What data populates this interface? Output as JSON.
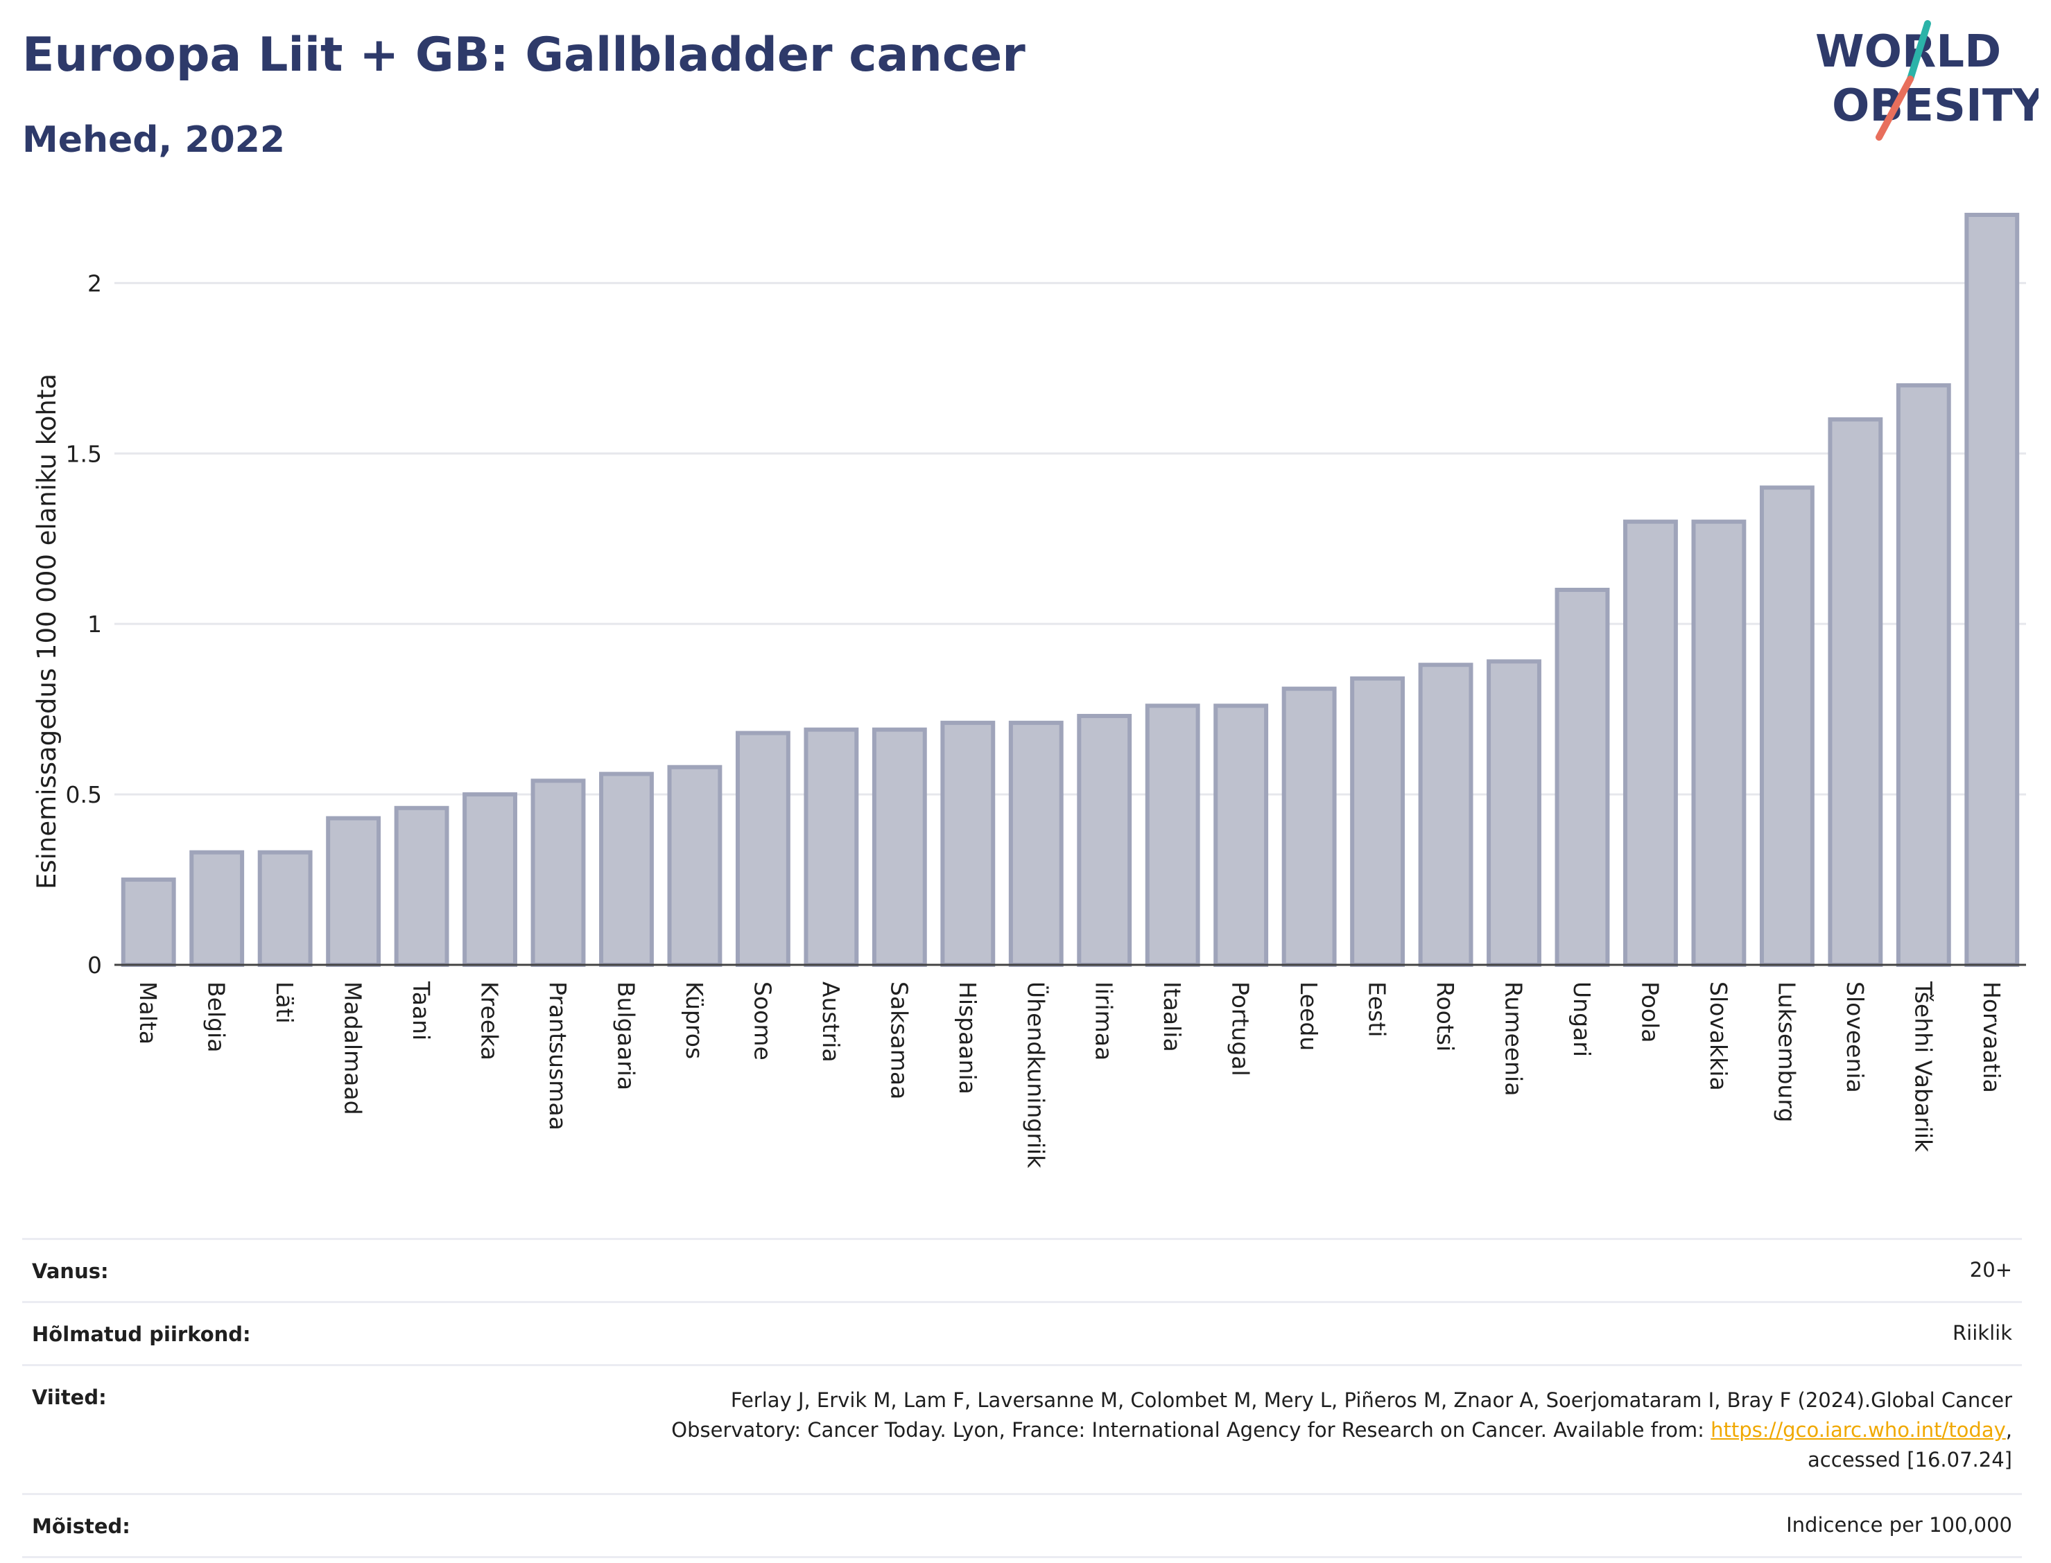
{
  "header": {
    "title": "Euroopa Liit + GB: Gallbladder cancer",
    "subtitle": "Mehed, 2022"
  },
  "logo": {
    "line1": "WORLD",
    "line2": "OBESITY",
    "accent_colors": [
      "#2bb3a8",
      "#e86f5c"
    ],
    "text_color": "#2e3a6a"
  },
  "chart_data": {
    "type": "bar",
    "ylabel": "Esinemissagedus 100 000 elaniku kohta",
    "ylim": [
      0,
      2.2
    ],
    "yticks": [
      0,
      0.5,
      1,
      1.5,
      2
    ],
    "ytick_labels": [
      "0",
      "0.5",
      "1",
      "1.5",
      "2"
    ],
    "grid": true,
    "bar_color": "#bec1ce",
    "bar_edge_color": "#9fa4ba",
    "categories": [
      "Malta",
      "Belgia",
      "Läti",
      "Madalmaad",
      "Taani",
      "Kreeka",
      "Prantsusmaa",
      "Bulgaaria",
      "Küpros",
      "Soome",
      "Austria",
      "Saksamaa",
      "Hispaania",
      "Ühendkuningriik",
      "Iirimaa",
      "Itaalia",
      "Portugal",
      "Leedu",
      "Eesti",
      "Rootsi",
      "Rumeenia",
      "Ungari",
      "Poola",
      "Slovakkia",
      "Luksemburg",
      "Sloveenia",
      "Tšehhi Vabariik",
      "Horvaatia"
    ],
    "values": [
      0.25,
      0.33,
      0.33,
      0.43,
      0.46,
      0.5,
      0.54,
      0.56,
      0.58,
      0.68,
      0.69,
      0.69,
      0.71,
      0.71,
      0.73,
      0.76,
      0.76,
      0.81,
      0.84,
      0.88,
      0.89,
      1.1,
      1.3,
      1.3,
      1.4,
      1.6,
      1.7,
      2.2
    ]
  },
  "info": {
    "rows": [
      {
        "label": "Vanus:",
        "value": "20+"
      },
      {
        "label": "Hõlmatud piirkond:",
        "value": "Riiklik"
      },
      {
        "label": "Viited:",
        "value_lines": [
          "Ferlay J, Ervik M, Lam F, Laversanne M, Colombet M, Mery L, Piñeros M, Znaor A, Soerjomataram I, Bray F (2024).Global Cancer",
          "Observatory: Cancer Today. Lyon, France: International Agency for Research on Cancer. Available from: ",
          "accessed [16.07.24]"
        ],
        "link_text": "https://gco.iarc.who.int/today",
        "after_link": ","
      },
      {
        "label": "Mõisted:",
        "value": "Indicence per 100,000"
      }
    ]
  }
}
